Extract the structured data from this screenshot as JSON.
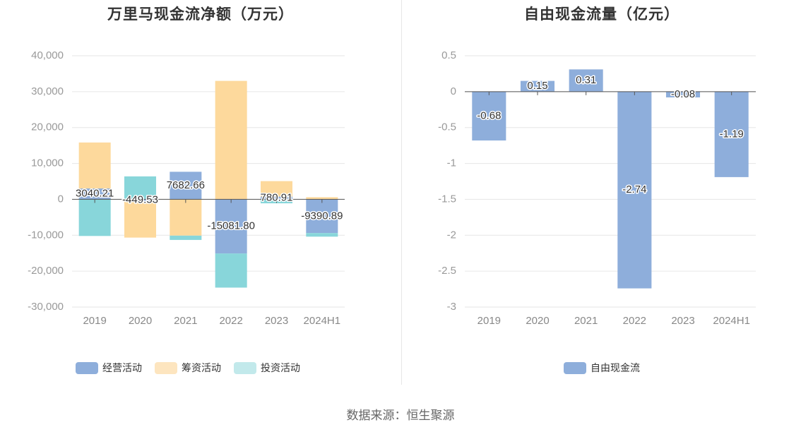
{
  "source": "数据来源：恒生聚源",
  "chart_data": [
    {
      "type": "bar",
      "stacked": true,
      "title": "万里马现金流净额（万元）",
      "categories": [
        "2019",
        "2020",
        "2021",
        "2022",
        "2023",
        "2024H1"
      ],
      "series": [
        {
          "name": "经营活动",
          "color": "#8eaedb",
          "values": [
            3040.21,
            -449.53,
            7682.66,
            -15081.8,
            780.91,
            -9390.89
          ]
        },
        {
          "name": "筹资活动",
          "color": "#fdd99c",
          "values": [
            12800,
            -10200,
            -10100,
            33000,
            4300,
            600
          ]
        },
        {
          "name": "投资活动",
          "color": "#88d6da",
          "values": [
            -10200,
            6400,
            -1200,
            -9500,
            -1100,
            -1000
          ]
        }
      ],
      "data_labels": [
        "3040.21",
        "-449.53",
        "7682.66",
        "-15081.80",
        "780.91",
        "-9390.89"
      ],
      "yticks": [
        40000,
        30000,
        20000,
        10000,
        0,
        -10000,
        -20000,
        -30000
      ],
      "ytick_labels": [
        "40,000",
        "30,000",
        "20,000",
        "10,000",
        "0",
        "-10,000",
        "-20,000",
        "-30,000"
      ],
      "ylim": [
        -30000,
        40000
      ],
      "legend_position": "bottom",
      "legend": [
        {
          "name": "经营活动",
          "color": "#8eaedb"
        },
        {
          "name": "筹资活动",
          "color": "#fde5bf"
        },
        {
          "name": "投资活动",
          "color": "#c2e9eb"
        }
      ]
    },
    {
      "type": "bar",
      "title": "自由现金流量（亿元）",
      "categories": [
        "2019",
        "2020",
        "2021",
        "2022",
        "2023",
        "2024H1"
      ],
      "series": [
        {
          "name": "自由现金流",
          "color": "#8eaedb",
          "values": [
            -0.68,
            0.15,
            0.31,
            -2.74,
            -0.08,
            -1.19
          ]
        }
      ],
      "data_labels": [
        "-0.68",
        "0.15",
        "0.31",
        "-2.74",
        "-0.08",
        "-1.19"
      ],
      "yticks": [
        0.5,
        0,
        -0.5,
        -1,
        -1.5,
        -2,
        -2.5,
        -3
      ],
      "ytick_labels": [
        "0.5",
        "0",
        "-0.5",
        "-1",
        "-1.5",
        "-2",
        "-2.5",
        "-3"
      ],
      "ylim": [
        -3,
        0.5
      ],
      "legend_position": "bottom",
      "legend": [
        {
          "name": "自由现金流",
          "color": "#8eaedb"
        }
      ]
    }
  ]
}
